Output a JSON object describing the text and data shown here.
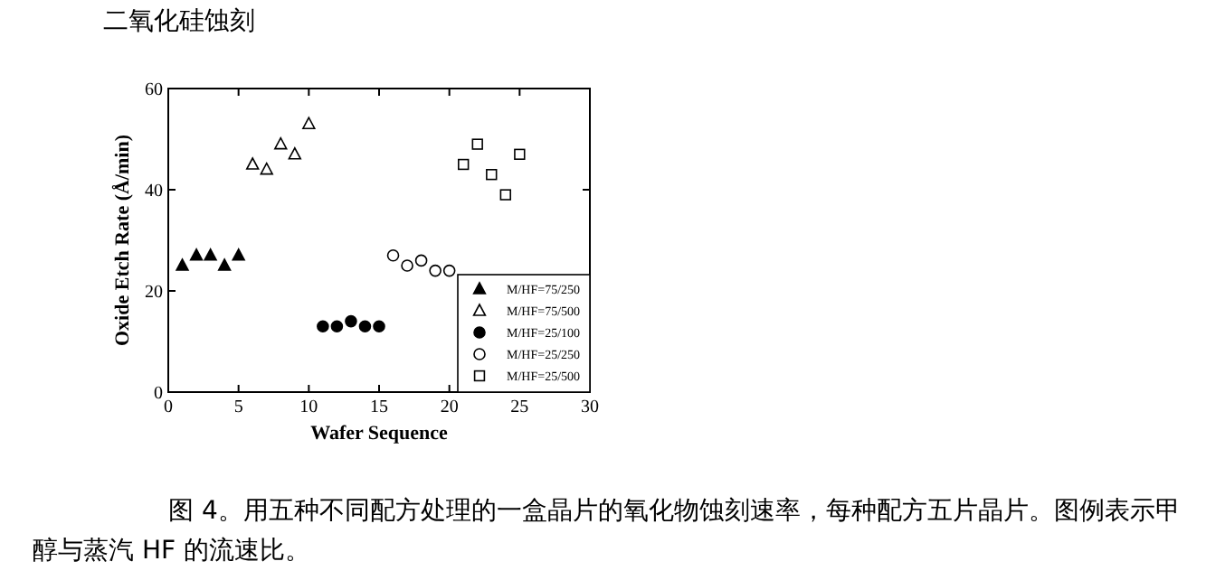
{
  "chart_data": {
    "type": "scatter",
    "title": "二氧化硅蚀刻",
    "xlabel": "Wafer Sequence",
    "ylabel": "Oxide Etch Rate (Å/min)",
    "annotations": [
      "图 4。用五种不同配方处理的一盒晶片的氧化物蚀刻速率，每种配方五片晶片。图例表示甲醇与蒸汽 HF 的流速比。"
    ],
    "xlim": [
      0,
      30
    ],
    "ylim": [
      0,
      60
    ],
    "xticks": [
      0,
      5,
      10,
      15,
      20,
      25,
      30
    ],
    "yticks": [
      0,
      20,
      40,
      60
    ],
    "grid": false,
    "legend": "bottom right",
    "series": [
      {
        "name": "M/HF=75/250",
        "color": "#000000",
        "marker": "triangle",
        "x": [
          1,
          2,
          3,
          4,
          5
        ],
        "values": [
          25,
          27,
          27,
          25,
          27
        ]
      },
      {
        "name": "M/HF=75/500",
        "color": "#000000",
        "marker": "triangle-open",
        "x": [
          6,
          7,
          8,
          9,
          10
        ],
        "values": [
          45,
          44,
          49,
          47,
          53
        ]
      },
      {
        "name": "M/HF=25/100",
        "color": "#000000",
        "marker": "circle",
        "x": [
          11,
          12,
          13,
          14,
          15
        ],
        "values": [
          13,
          13,
          14,
          13,
          13
        ]
      },
      {
        "name": "M/HF=25/250",
        "color": "#000000",
        "marker": "circle-open",
        "x": [
          16,
          17,
          18,
          19,
          20
        ],
        "values": [
          27,
          25,
          26,
          24,
          24
        ]
      },
      {
        "name": "M/HF=25/500",
        "color": "#000000",
        "marker": "square-open",
        "x": [
          21,
          22,
          23,
          24,
          25
        ],
        "values": [
          45,
          49,
          43,
          39,
          47
        ]
      }
    ]
  }
}
